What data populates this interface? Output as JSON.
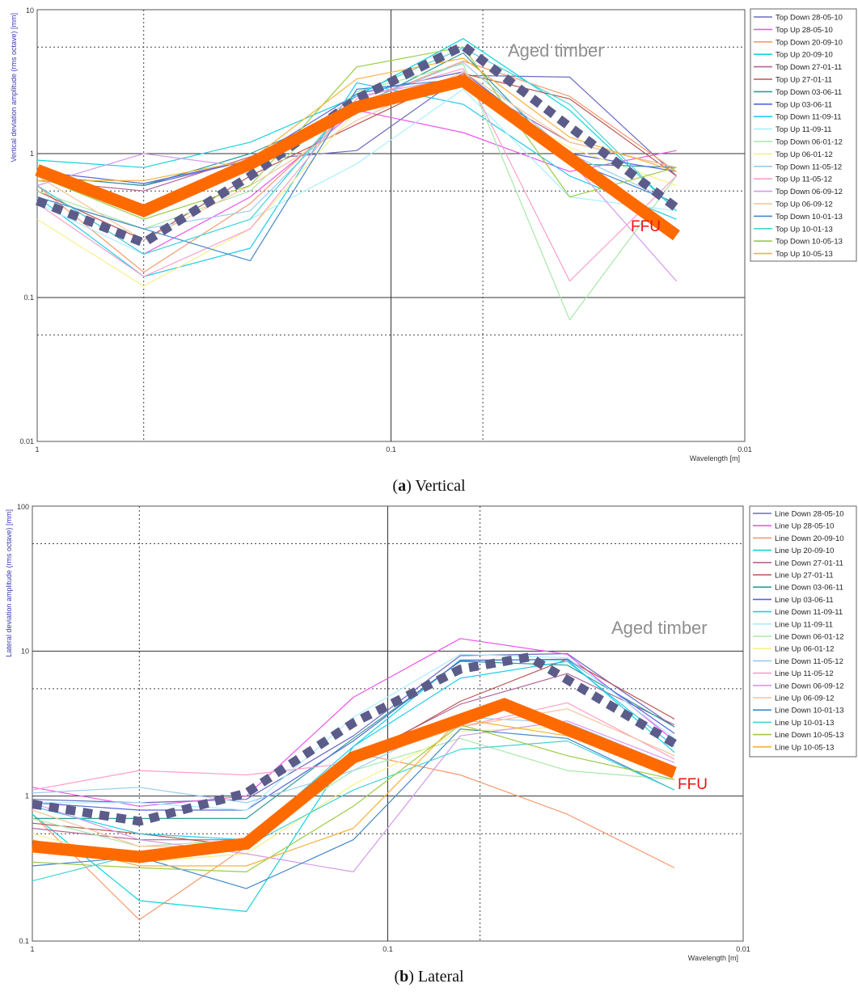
{
  "chart_data": [
    {
      "type": "line",
      "caption_letter": "a",
      "caption_text": "Vertical",
      "xlabel": "Wavelength [m]",
      "ylabel": "Vertical deviation amplitude (rms octave) [mm]",
      "x_scale": "log-reversed",
      "y_scale": "log",
      "xlim": [
        1,
        0.01
      ],
      "ylim": [
        0.01,
        10
      ],
      "x_tick_labels": [
        "1",
        "0.1",
        "0.01"
      ],
      "y_tick_labels": [
        "10",
        "1",
        "0.1",
        "0.01"
      ],
      "grid": true,
      "legend_position": "right",
      "x": [
        1,
        0.5,
        0.25,
        0.125,
        0.0625,
        0.03125,
        0.0156
      ],
      "series": [
        {
          "name": "Top Down 28-05-10",
          "color": "#6b6bc0",
          "values": [
            0.7,
            0.6,
            0.9,
            1.05,
            3.5,
            3.4,
            0.7
          ]
        },
        {
          "name": "Top Up 28-05-10",
          "color": "#ee55ee",
          "values": [
            0.6,
            0.2,
            0.5,
            2.0,
            1.4,
            0.75,
            1.05
          ]
        },
        {
          "name": "Top Down 20-09-10",
          "color": "#f59a6e",
          "values": [
            0.6,
            0.15,
            0.45,
            2.2,
            4.4,
            2.5,
            0.75
          ]
        },
        {
          "name": "Top Up 20-09-10",
          "color": "#11d4dd",
          "values": [
            0.9,
            0.8,
            1.2,
            2.5,
            6.3,
            2.0,
            0.4
          ]
        },
        {
          "name": "Top Down 27-01-11",
          "color": "#b36699",
          "values": [
            0.65,
            0.55,
            0.95,
            2.0,
            3.2,
            1.2,
            0.8
          ]
        },
        {
          "name": "Top Up 27-01-11",
          "color": "#bb5555",
          "values": [
            0.55,
            0.25,
            0.7,
            1.6,
            3.6,
            2.4,
            0.7
          ]
        },
        {
          "name": "Top Down 03-06-11",
          "color": "#2f9c9c",
          "values": [
            0.7,
            0.6,
            1.0,
            2.1,
            5.0,
            0.85,
            0.8
          ]
        },
        {
          "name": "Top Up 03-06-11",
          "color": "#5566dd",
          "values": [
            0.75,
            0.62,
            0.9,
            2.6,
            3.7,
            1.0,
            0.75
          ]
        },
        {
          "name": "Top Down 11-09-11",
          "color": "#22ccee",
          "values": [
            0.5,
            0.14,
            0.22,
            3.1,
            2.2,
            0.7,
            0.35
          ]
        },
        {
          "name": "Top Up 11-09-11",
          "color": "#aaeeff",
          "values": [
            0.45,
            0.2,
            0.35,
            0.85,
            2.8,
            0.5,
            0.4
          ]
        },
        {
          "name": "Top Down 06-01-12",
          "color": "#a8e8a8",
          "values": [
            0.55,
            0.3,
            0.55,
            2.7,
            4.2,
            0.07,
            0.7
          ]
        },
        {
          "name": "Top Up 06-01-12",
          "color": "#f5f08a",
          "values": [
            0.35,
            0.12,
            0.3,
            2.0,
            3.0,
            1.1,
            0.6
          ]
        },
        {
          "name": "Top Down 11-05-12",
          "color": "#99ccee",
          "values": [
            0.5,
            0.3,
            0.4,
            2.2,
            4.3,
            1.0,
            0.45
          ]
        },
        {
          "name": "Top Up 11-05-12",
          "color": "#ff9ec8",
          "values": [
            0.45,
            0.14,
            0.3,
            2.4,
            3.9,
            0.13,
            0.7
          ]
        },
        {
          "name": "Top Down 06-09-12",
          "color": "#d59ae8",
          "values": [
            0.6,
            1.0,
            0.8,
            2.5,
            3.4,
            0.9,
            0.13
          ]
        },
        {
          "name": "Top Up 06-09-12",
          "color": "#f5c49a",
          "values": [
            0.7,
            0.25,
            0.6,
            1.7,
            3.7,
            1.2,
            0.8
          ]
        },
        {
          "name": "Top Down 10-01-13",
          "color": "#4488cc",
          "values": [
            0.5,
            0.3,
            0.18,
            2.8,
            3.3,
            0.9,
            0.45
          ]
        },
        {
          "name": "Top Up 10-01-13",
          "color": "#44d4d4",
          "values": [
            0.6,
            0.2,
            0.35,
            2.6,
            5.4,
            2.2,
            0.4
          ]
        },
        {
          "name": "Top Down 10-05-13",
          "color": "#9bcc44",
          "values": [
            0.7,
            0.35,
            0.6,
            4.0,
            5.5,
            0.5,
            0.8
          ]
        },
        {
          "name": "Top Up 10-05-13",
          "color": "#f5b23a",
          "values": [
            0.65,
            0.65,
            0.9,
            3.3,
            4.6,
            1.3,
            0.75
          ]
        }
      ],
      "overlays": [
        {
          "name": "Aged timber",
          "style": "dotted",
          "color": "#5c5c8a",
          "x": [
            1,
            0.5,
            0.25,
            0.125,
            0.0625,
            0.0156
          ],
          "values": [
            0.47,
            0.24,
            0.7,
            2.4,
            5.6,
            0.42
          ]
        },
        {
          "name": "FFU",
          "style": "thick",
          "color": "#ff6a00",
          "x": [
            1,
            0.5,
            0.25,
            0.125,
            0.0625,
            0.0156
          ],
          "values": [
            0.77,
            0.4,
            0.85,
            2.1,
            3.2,
            0.27
          ]
        }
      ],
      "annotations": [
        {
          "text": "Aged timber",
          "color": "#8f8f8f"
        },
        {
          "text": "FFU",
          "color": "#ee1111"
        }
      ]
    },
    {
      "type": "line",
      "caption_letter": "b",
      "caption_text": "Lateral",
      "xlabel": "Wavelength [m]",
      "ylabel": "Lateral deviation amplitude (rms octave) [mm]",
      "x_scale": "log-reversed",
      "y_scale": "log",
      "xlim": [
        1,
        0.01
      ],
      "ylim": [
        0.1,
        100
      ],
      "x_tick_labels": [
        "1",
        "0.1",
        "0.01"
      ],
      "y_tick_labels": [
        "100",
        "10",
        "1",
        "0.1"
      ],
      "grid": true,
      "legend_position": "right",
      "x": [
        1,
        0.5,
        0.25,
        0.125,
        0.0625,
        0.03125,
        0.0156
      ],
      "series": [
        {
          "name": "Line Down 28-05-10",
          "color": "#6b6bc0",
          "values": [
            0.95,
            0.9,
            0.95,
            2.6,
            9.3,
            9.6,
            3.0
          ]
        },
        {
          "name": "Line Up 28-05-10",
          "color": "#ee55ee",
          "values": [
            1.15,
            0.85,
            1.0,
            4.8,
            12.2,
            9.5,
            2.4
          ]
        },
        {
          "name": "Line Down 20-09-10",
          "color": "#f59a6e",
          "values": [
            0.75,
            0.14,
            0.45,
            2.0,
            1.4,
            0.75,
            0.32
          ]
        },
        {
          "name": "Line Up 20-09-10",
          "color": "#11d4dd",
          "values": [
            0.75,
            0.19,
            0.16,
            2.2,
            8.7,
            8.7,
            2.0
          ]
        },
        {
          "name": "Line Down 27-01-11",
          "color": "#b36699",
          "values": [
            0.6,
            0.5,
            0.5,
            1.8,
            4.3,
            7.0,
            3.1
          ]
        },
        {
          "name": "Line Up 27-01-11",
          "color": "#bb5555",
          "values": [
            0.65,
            0.55,
            0.45,
            1.7,
            4.5,
            8.8,
            3.4
          ]
        },
        {
          "name": "Line Down 03-06-11",
          "color": "#2f9c9c",
          "values": [
            0.7,
            0.7,
            0.7,
            2.5,
            8.5,
            8.0,
            3.0
          ]
        },
        {
          "name": "Line Up 03-06-11",
          "color": "#5566dd",
          "values": [
            0.9,
            0.8,
            0.8,
            2.4,
            8.6,
            8.8,
            2.7
          ]
        },
        {
          "name": "Line Down 11-09-11",
          "color": "#22ccee",
          "values": [
            0.85,
            0.55,
            0.5,
            2.2,
            6.5,
            8.5,
            2.2
          ]
        },
        {
          "name": "Line Up 11-09-11",
          "color": "#aaeeff",
          "values": [
            0.9,
            0.9,
            0.8,
            3.5,
            9.5,
            9.0,
            2.5
          ]
        },
        {
          "name": "Line Down 06-01-12",
          "color": "#a8e8a8",
          "values": [
            0.7,
            0.45,
            0.5,
            1.5,
            2.5,
            1.5,
            1.3
          ]
        },
        {
          "name": "Line Up 06-01-12",
          "color": "#f5f08a",
          "values": [
            0.55,
            0.35,
            0.4,
            1.2,
            2.8,
            3.0,
            1.5
          ]
        },
        {
          "name": "Line Down 11-05-12",
          "color": "#99ccee",
          "values": [
            1.05,
            1.15,
            0.9,
            1.5,
            3.5,
            3.2,
            1.6
          ]
        },
        {
          "name": "Line Up 11-05-12",
          "color": "#ff9ec8",
          "values": [
            1.1,
            1.5,
            1.4,
            1.7,
            3.0,
            4.4,
            1.8
          ]
        },
        {
          "name": "Line Down 06-09-12",
          "color": "#d59ae8",
          "values": [
            0.9,
            0.5,
            0.4,
            0.3,
            2.6,
            3.3,
            1.7
          ]
        },
        {
          "name": "Line Up 06-09-12",
          "color": "#f5c49a",
          "values": [
            0.8,
            0.45,
            0.45,
            1.7,
            3.0,
            4.0,
            1.9
          ]
        },
        {
          "name": "Line Down 10-01-13",
          "color": "#4488cc",
          "values": [
            0.33,
            0.38,
            0.23,
            0.5,
            2.9,
            2.5,
            1.1
          ]
        },
        {
          "name": "Line Up 10-01-13",
          "color": "#44d4d4",
          "values": [
            0.26,
            0.4,
            0.45,
            1.1,
            2.1,
            2.4,
            1.1
          ]
        },
        {
          "name": "Line Down 10-05-13",
          "color": "#9bcc44",
          "values": [
            0.35,
            0.32,
            0.3,
            0.85,
            3.1,
            1.9,
            1.3
          ]
        },
        {
          "name": "Line Up 10-05-13",
          "color": "#f5b23a",
          "values": [
            0.5,
            0.33,
            0.33,
            0.6,
            3.4,
            2.6,
            1.4
          ]
        }
      ],
      "overlays": [
        {
          "name": "Aged timber",
          "style": "dotted",
          "color": "#5c5c8a",
          "x": [
            1,
            0.5,
            0.25,
            0.125,
            0.0625,
            0.04,
            0.0156
          ],
          "values": [
            0.88,
            0.67,
            1.05,
            3.2,
            7.5,
            9.1,
            2.3
          ]
        },
        {
          "name": "FFU",
          "style": "thick",
          "color": "#ff6a00",
          "x": [
            1,
            0.5,
            0.25,
            0.125,
            0.047,
            0.0156
          ],
          "values": [
            0.45,
            0.38,
            0.47,
            1.85,
            4.3,
            1.45
          ]
        }
      ],
      "annotations": [
        {
          "text": "Aged timber",
          "color": "#8f8f8f"
        },
        {
          "text": "FFU",
          "color": "#ee1111"
        }
      ]
    }
  ]
}
